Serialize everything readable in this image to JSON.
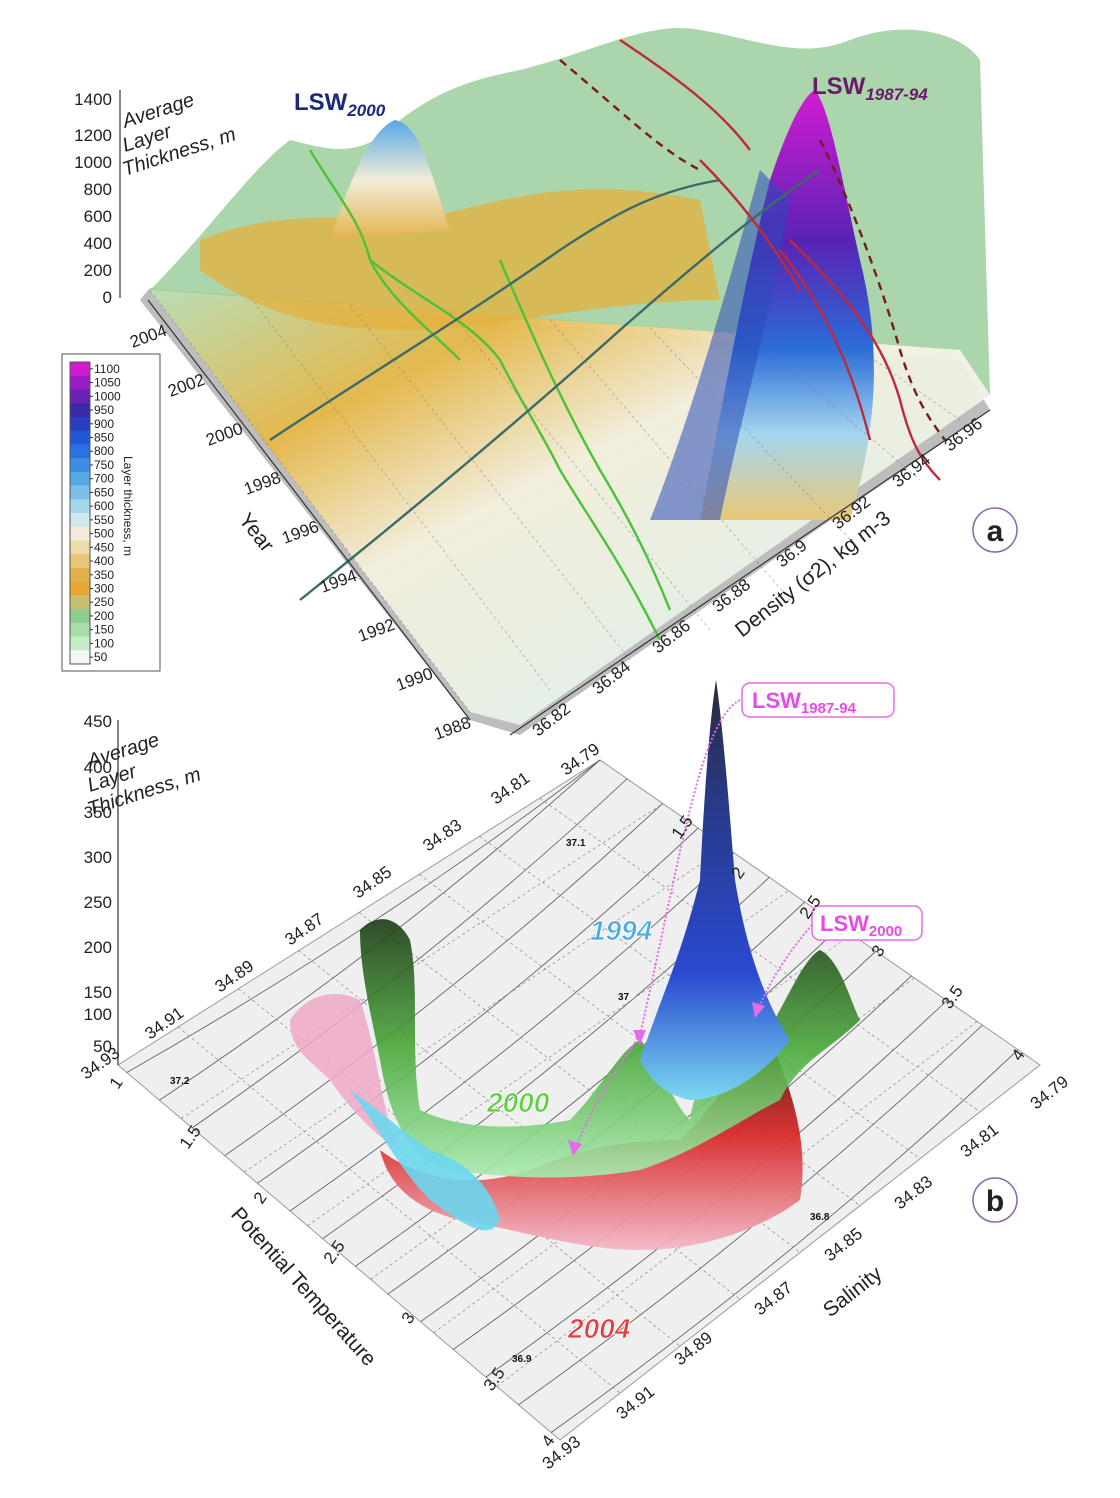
{
  "chart_data": [
    {
      "panel": "a",
      "type": "surface3d",
      "zlabel": [
        "Average",
        "Layer",
        "Thickness, m"
      ],
      "ylabel": "Year",
      "xlabel": "Density (σ2), kg m-3",
      "z_ticks": [
        "0",
        "200",
        "400",
        "600",
        "800",
        "1000",
        "1200",
        "1400"
      ],
      "year_ticks": [
        "1988",
        "1990",
        "1992",
        "1994",
        "1996",
        "1998",
        "2000",
        "2002",
        "2004"
      ],
      "density_ticks": [
        "36.82",
        "36.84",
        "36.86",
        "36.88",
        "36.9",
        "36.92",
        "36.94",
        "36.96"
      ],
      "zlim": [
        0,
        1400
      ],
      "annotations": [
        {
          "text": "LSW",
          "sub": "2000",
          "color": "#1a2a7a"
        },
        {
          "text": "LSW",
          "sub": "1987-94",
          "color": "#6a1a6a"
        }
      ],
      "colorbar": {
        "label": "Layer thickness, m",
        "ticks": [
          "1100",
          "1050",
          "1000",
          "950",
          "900",
          "850",
          "800",
          "750",
          "700",
          "650",
          "600",
          "550",
          "500",
          "450",
          "400",
          "350",
          "300",
          "250",
          "200",
          "150",
          "100",
          "50"
        ],
        "colors": [
          "#d21cd2",
          "#9a1cc8",
          "#6a22b4",
          "#3b2aa8",
          "#2a3cc0",
          "#2258d8",
          "#2a72e0",
          "#3c8ee4",
          "#58a8e6",
          "#7cc0ea",
          "#a4d6ee",
          "#cfe8f0",
          "#f2ecd8",
          "#eedca8",
          "#e8c878",
          "#e2b24a",
          "#e8a830",
          "#c8c070",
          "#8ccc8c",
          "#a8dca8",
          "#c8ecc8",
          "#f4f8f4"
        ]
      },
      "peaks": [
        {
          "label": "LSW2000",
          "year": 2004,
          "density": 36.84,
          "thickness": 1150
        },
        {
          "label": "LSW1987-94",
          "year": 1994,
          "density": 36.92,
          "thickness": 1350
        }
      ]
    },
    {
      "panel": "b",
      "type": "surface3d",
      "zlabel": [
        "Average",
        "Layer",
        "Thickness, m"
      ],
      "ylabel": "Potential Temperature",
      "xlabel": "Salinity",
      "z_ticks": [
        "50",
        "100",
        "150",
        "200",
        "250",
        "300",
        "350",
        "400",
        "450"
      ],
      "salinity_ticks_back": [
        "34.93",
        "34.91",
        "34.89",
        "34.87",
        "34.85",
        "34.83",
        "34.81",
        "34.79"
      ],
      "temperature_ticks_back": [
        "1.5",
        "2",
        "2.5",
        "3",
        "3.5",
        "4"
      ],
      "temperature_ticks_front": [
        "1",
        "1.5",
        "2",
        "2.5",
        "3",
        "3.5",
        "4"
      ],
      "salinity_ticks_front": [
        "34.93",
        "34.91",
        "34.89",
        "34.87",
        "34.85",
        "34.83",
        "34.81",
        "34.79"
      ],
      "isopycnal_labels": [
        "37.2",
        "37.1",
        "37",
        "36.9",
        "36.8"
      ],
      "zlim": [
        0,
        450
      ],
      "series": [
        {
          "name": "1994",
          "color": "#4aa8e8",
          "peak": 430
        },
        {
          "name": "2000",
          "color": "#5ad23a",
          "peak": 170
        },
        {
          "name": "2004",
          "color": "#e83a3a",
          "peak": 150
        }
      ],
      "annotations": [
        {
          "text": "LSW",
          "sub": "1987-94"
        },
        {
          "text": "LSW",
          "sub": "2000"
        }
      ]
    }
  ],
  "panel_labels": [
    "a",
    "b"
  ]
}
